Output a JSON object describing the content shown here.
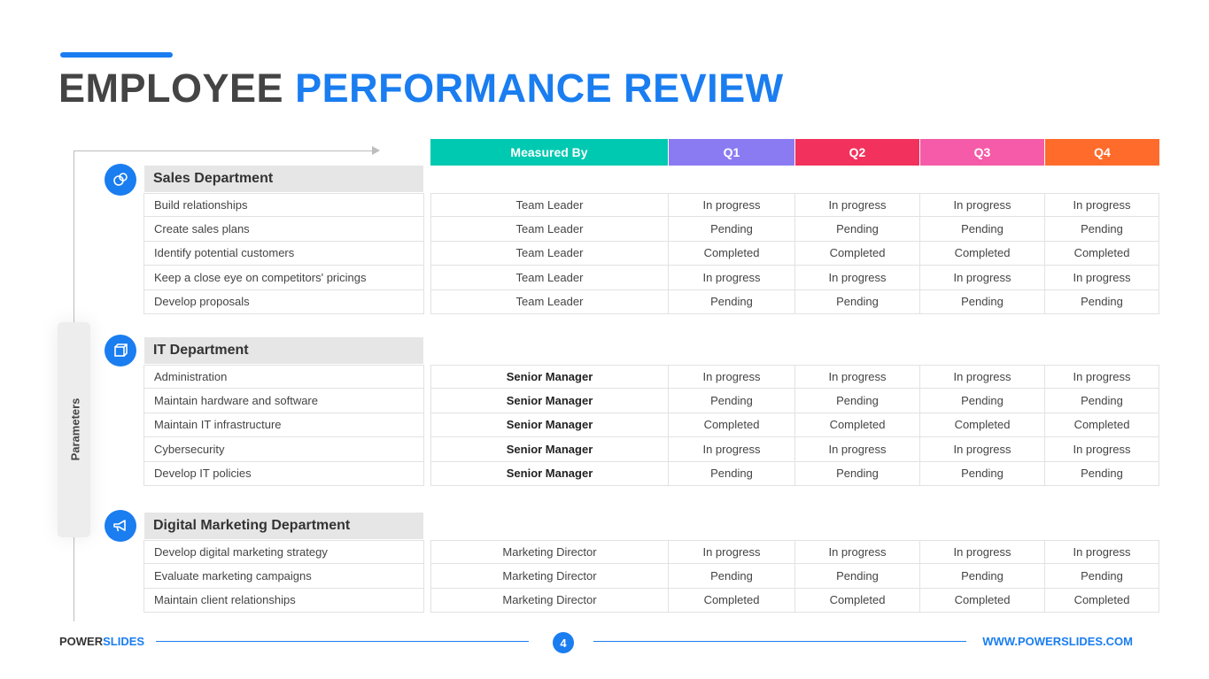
{
  "title": {
    "part1": "EMPLOYEE",
    "part2": "PERFORMANCE REVIEW"
  },
  "side_label": "Parameters",
  "columns": [
    {
      "label": "Measured By",
      "color": "#00c9b1"
    },
    {
      "label": "Q1",
      "color": "#8b7bf2"
    },
    {
      "label": "Q2",
      "color": "#f2315d"
    },
    {
      "label": "Q3",
      "color": "#f55ba8"
    },
    {
      "label": "Q4",
      "color": "#ff6b2b"
    }
  ],
  "departments": [
    {
      "name": "Sales Department",
      "icon": "palette-icon",
      "measured_bold": false,
      "rows": [
        {
          "task": "Build relationships",
          "measured_by": "Team Leader",
          "q": [
            "In progress",
            "In progress",
            "In progress",
            "In progress"
          ]
        },
        {
          "task": "Create sales plans",
          "measured_by": "Team Leader",
          "q": [
            "Pending",
            "Pending",
            "Pending",
            "Pending"
          ]
        },
        {
          "task": "Identify potential customers",
          "measured_by": "Team Leader",
          "q": [
            "Completed",
            "Completed",
            "Completed",
            "Completed"
          ]
        },
        {
          "task": "Keep a close eye on competitors' pricings",
          "measured_by": "Team Leader",
          "q": [
            "In progress",
            "In progress",
            "In progress",
            "In progress"
          ]
        },
        {
          "task": "Develop proposals",
          "measured_by": "Team Leader",
          "q": [
            "Pending",
            "Pending",
            "Pending",
            "Pending"
          ]
        }
      ]
    },
    {
      "name": "IT Department",
      "icon": "cube-icon",
      "measured_bold": true,
      "rows": [
        {
          "task": "Administration",
          "measured_by": "Senior Manager",
          "q": [
            "In progress",
            "In progress",
            "In progress",
            "In progress"
          ]
        },
        {
          "task": "Maintain hardware and software",
          "measured_by": "Senior Manager",
          "q": [
            "Pending",
            "Pending",
            "Pending",
            "Pending"
          ]
        },
        {
          "task": "Maintain IT infrastructure",
          "measured_by": "Senior Manager",
          "q": [
            "Completed",
            "Completed",
            "Completed",
            "Completed"
          ]
        },
        {
          "task": "Cybersecurity",
          "measured_by": "Senior Manager",
          "q": [
            "In progress",
            "In progress",
            "In progress",
            "In progress"
          ]
        },
        {
          "task": "Develop IT policies",
          "measured_by": "Senior Manager",
          "q": [
            "Pending",
            "Pending",
            "Pending",
            "Pending"
          ]
        }
      ]
    },
    {
      "name": "Digital Marketing Department",
      "icon": "megaphone-icon",
      "measured_bold": false,
      "rows": [
        {
          "task": "Develop digital marketing strategy",
          "measured_by": "Marketing Director",
          "q": [
            "In progress",
            "In progress",
            "In progress",
            "In progress"
          ]
        },
        {
          "task": "Evaluate marketing campaigns",
          "measured_by": "Marketing Director",
          "q": [
            "Pending",
            "Pending",
            "Pending",
            "Pending"
          ]
        },
        {
          "task": "Maintain client relationships",
          "measured_by": "Marketing Director",
          "q": [
            "Completed",
            "Completed",
            "Completed",
            "Completed"
          ]
        }
      ]
    }
  ],
  "footer": {
    "brand_part1": "POWER",
    "brand_part2": "SLIDES",
    "page_number": "4",
    "website": "WWW.POWERSLIDES.COM"
  },
  "colors": {
    "accent": "#1a7df0"
  }
}
